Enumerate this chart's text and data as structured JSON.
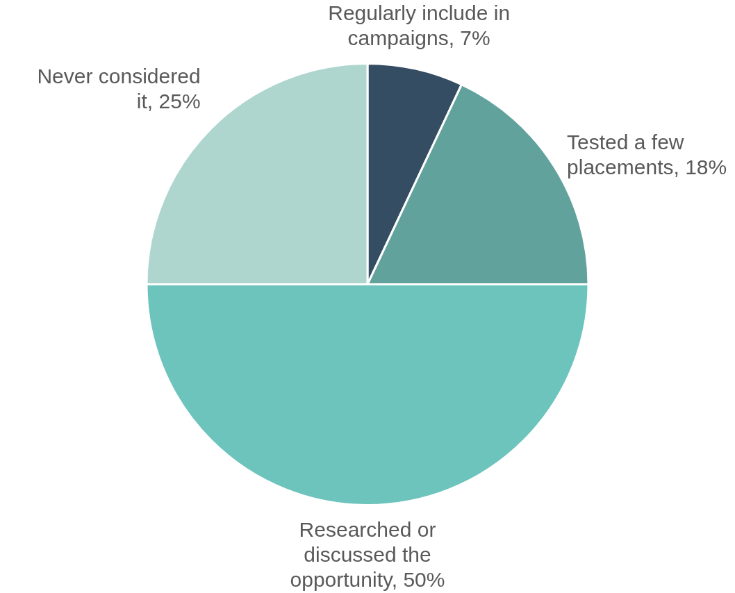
{
  "chart_data": {
    "type": "pie",
    "categories": [
      "Regularly include in campaigns",
      "Tested a few placements",
      "Researched or discussed the opportunity",
      "Never considered it"
    ],
    "values": [
      7,
      18,
      50,
      25
    ],
    "value_labels": [
      "7%",
      "18%",
      "50%",
      "25%"
    ],
    "colors": [
      "#354d63",
      "#62a29d",
      "#6cc4bc",
      "#aed6cf"
    ],
    "legend": false
  }
}
